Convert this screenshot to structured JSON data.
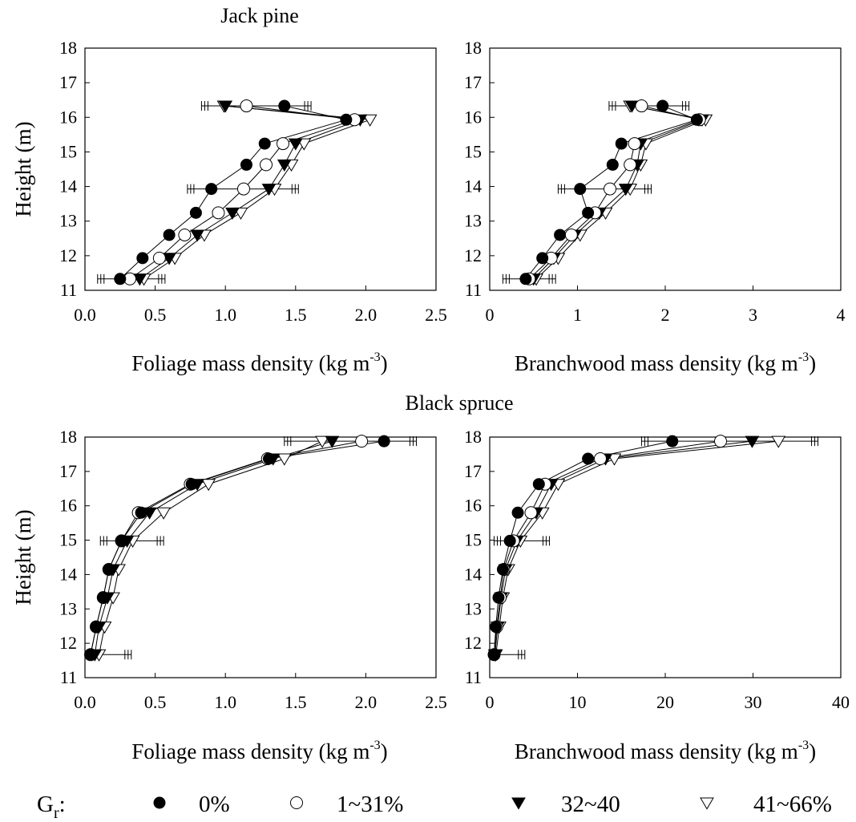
{
  "chart_data": [
    {
      "type": "line",
      "group_title": "Jack pine",
      "xlabel": "Foliage mass density (kg m",
      "xlabel_sup": "-3",
      "xlabel_end": ")",
      "ylabel": "Height (m)",
      "xlim": [
        0,
        2.5
      ],
      "ylim": [
        11,
        18
      ],
      "xticks": [
        "0.0",
        "0.5",
        "1.0",
        "1.5",
        "2.0",
        "2.5"
      ],
      "yticks": [
        "11",
        "12",
        "13",
        "14",
        "15",
        "16",
        "17",
        "18"
      ],
      "series": [
        {
          "name": "0%",
          "x": [
            1.42,
            1.86,
            1.28,
            1.15,
            0.9,
            0.79,
            0.6,
            0.41,
            0.25
          ],
          "y": [
            16.33,
            15.93,
            15.24,
            14.63,
            13.93,
            13.24,
            12.6,
            11.93,
            11.33
          ]
        },
        {
          "name": "1~31%",
          "x": [
            1.15,
            1.92,
            1.41,
            1.29,
            1.13,
            0.95,
            0.71,
            0.53,
            0.32
          ],
          "y": [
            16.33,
            15.93,
            15.24,
            14.63,
            13.93,
            13.24,
            12.6,
            11.93,
            11.33
          ]
        },
        {
          "name": "32~40",
          "x": [
            1.0,
            1.96,
            1.5,
            1.42,
            1.31,
            1.05,
            0.8,
            0.6,
            0.39
          ],
          "y": [
            16.33,
            15.93,
            15.24,
            14.63,
            13.93,
            13.24,
            12.6,
            11.93,
            11.33
          ]
        },
        {
          "name": "41~66%",
          "x": [
            0.99,
            2.03,
            1.56,
            1.47,
            1.35,
            1.11,
            0.85,
            0.64,
            0.42
          ],
          "y": [
            16.33,
            15.93,
            15.24,
            14.63,
            13.93,
            13.24,
            12.6,
            11.93,
            11.33
          ]
        }
      ],
      "error_bars": [
        {
          "y": 16.33,
          "x": [
            0.83,
            1.61
          ]
        },
        {
          "y": 13.93,
          "x": [
            0.73,
            1.52
          ]
        },
        {
          "y": 11.33,
          "x": [
            0.09,
            0.57
          ]
        }
      ]
    },
    {
      "type": "line",
      "group_title": "",
      "xlabel": "Branchwood mass density (kg m",
      "xlabel_sup": "-3",
      "xlabel_end": ")",
      "ylabel": "",
      "xlim": [
        0,
        4
      ],
      "ylim": [
        11,
        18
      ],
      "xticks": [
        "0",
        "1",
        "2",
        "3",
        "4"
      ],
      "yticks": [
        "11",
        "12",
        "13",
        "14",
        "15",
        "16",
        "17",
        "18"
      ],
      "series": [
        {
          "name": "0%",
          "x": [
            1.97,
            2.36,
            1.5,
            1.4,
            1.03,
            1.12,
            0.8,
            0.6,
            0.41
          ],
          "y": [
            16.33,
            15.93,
            15.24,
            14.63,
            13.93,
            13.24,
            12.6,
            11.93,
            11.33
          ]
        },
        {
          "name": "1~31%",
          "x": [
            1.73,
            2.39,
            1.65,
            1.6,
            1.37,
            1.2,
            0.93,
            0.7,
            0.45
          ],
          "y": [
            16.33,
            15.93,
            15.24,
            14.63,
            13.93,
            13.24,
            12.6,
            11.93,
            11.33
          ]
        },
        {
          "name": "32~40",
          "x": [
            1.62,
            2.42,
            1.72,
            1.68,
            1.55,
            1.25,
            0.97,
            0.73,
            0.5
          ],
          "y": [
            16.33,
            15.93,
            15.24,
            14.63,
            13.93,
            13.24,
            12.6,
            11.93,
            11.33
          ]
        },
        {
          "name": "41~66%",
          "x": [
            1.6,
            2.46,
            1.78,
            1.72,
            1.6,
            1.32,
            1.03,
            0.78,
            0.53
          ],
          "y": [
            16.33,
            15.93,
            15.24,
            14.63,
            13.93,
            13.24,
            12.6,
            11.93,
            11.33
          ]
        }
      ],
      "error_bars": [
        {
          "y": 16.33,
          "x": [
            1.36,
            2.27
          ]
        },
        {
          "y": 13.93,
          "x": [
            0.78,
            1.84
          ]
        },
        {
          "y": 11.33,
          "x": [
            0.15,
            0.75
          ]
        }
      ]
    },
    {
      "type": "line",
      "group_title": "Black spruce",
      "xlabel": "Foliage mass density (kg m",
      "xlabel_sup": "-3",
      "xlabel_end": ")",
      "ylabel": "Height (m)",
      "xlim": [
        0,
        2.5
      ],
      "ylim": [
        11,
        18
      ],
      "xticks": [
        "0.0",
        "0.5",
        "1.0",
        "1.5",
        "2.0",
        "2.5"
      ],
      "yticks": [
        "11",
        "12",
        "13",
        "14",
        "15",
        "16",
        "17",
        "18"
      ],
      "series": [
        {
          "name": "0%",
          "x": [
            2.13,
            1.31,
            0.76,
            0.4,
            0.26,
            0.17,
            0.13,
            0.08,
            0.04
          ],
          "y": [
            17.88,
            17.37,
            16.63,
            15.8,
            14.98,
            14.15,
            13.33,
            12.48,
            11.67
          ]
        },
        {
          "name": "1~31%",
          "x": [
            1.97,
            1.3,
            0.75,
            0.38,
            0.26,
            0.17,
            0.13,
            0.08,
            0.04
          ],
          "y": [
            17.88,
            17.37,
            16.63,
            15.8,
            14.98,
            14.15,
            13.33,
            12.48,
            11.67
          ]
        },
        {
          "name": "32~40",
          "x": [
            1.76,
            1.34,
            0.8,
            0.46,
            0.3,
            0.2,
            0.16,
            0.1,
            0.07
          ],
          "y": [
            17.88,
            17.37,
            16.63,
            15.8,
            14.98,
            14.15,
            13.33,
            12.48,
            11.67
          ]
        },
        {
          "name": "41~66%",
          "x": [
            1.69,
            1.42,
            0.88,
            0.56,
            0.34,
            0.24,
            0.2,
            0.14,
            0.1
          ],
          "y": [
            17.88,
            17.37,
            16.63,
            15.8,
            14.98,
            14.15,
            13.33,
            12.48,
            11.67
          ]
        }
      ],
      "error_bars": [
        {
          "y": 17.88,
          "x": [
            1.42,
            2.36
          ]
        },
        {
          "y": 14.98,
          "x": [
            0.11,
            0.56
          ]
        },
        {
          "y": 11.67,
          "x": [
            0.03,
            0.33
          ]
        }
      ]
    },
    {
      "type": "line",
      "group_title": "",
      "xlabel": "Branchwood mass density (kg m",
      "xlabel_sup": "-3",
      "xlabel_end": ")",
      "ylabel": "",
      "xlim": [
        0,
        40
      ],
      "ylim": [
        11,
        18
      ],
      "xticks": [
        "0",
        "10",
        "20",
        "30",
        "40"
      ],
      "yticks": [
        "11",
        "12",
        "13",
        "14",
        "15",
        "16",
        "17",
        "18"
      ],
      "series": [
        {
          "name": "0%",
          "x": [
            20.8,
            11.2,
            5.6,
            3.2,
            2.3,
            1.5,
            1.0,
            0.7,
            0.5
          ],
          "y": [
            17.88,
            17.37,
            16.63,
            15.8,
            14.98,
            14.15,
            13.33,
            12.48,
            11.67
          ]
        },
        {
          "name": "1~31%",
          "x": [
            26.3,
            12.6,
            6.3,
            4.7,
            2.7,
            1.6,
            1.2,
            0.8,
            0.5
          ],
          "y": [
            17.88,
            17.37,
            16.63,
            15.8,
            14.98,
            14.15,
            13.33,
            12.48,
            11.67
          ]
        },
        {
          "name": "32~40",
          "x": [
            29.9,
            13.2,
            7.0,
            5.3,
            3.1,
            1.8,
            1.3,
            0.9,
            0.6
          ],
          "y": [
            17.88,
            17.37,
            16.63,
            15.8,
            14.98,
            14.15,
            13.33,
            12.48,
            11.67
          ]
        },
        {
          "name": "41~66%",
          "x": [
            32.9,
            14.2,
            7.8,
            6.0,
            3.5,
            2.1,
            1.5,
            1.1,
            0.7
          ],
          "y": [
            17.88,
            17.37,
            16.63,
            15.8,
            14.98,
            14.15,
            13.33,
            12.48,
            11.67
          ]
        }
      ],
      "error_bars": [
        {
          "y": 17.88,
          "x": [
            17.3,
            37.4
          ]
        },
        {
          "y": 14.98,
          "x": [
            0.5,
            6.8
          ]
        },
        {
          "y": 11.67,
          "x": [
            0.2,
            4.0
          ]
        }
      ]
    }
  ],
  "legend": {
    "label_main": "G",
    "label_sub": "r",
    "label_colon": ":",
    "items": [
      {
        "marker": "filled-circle",
        "label": "0%"
      },
      {
        "marker": "open-circle",
        "label": "1~31%"
      },
      {
        "marker": "filled-triangle-down",
        "label": "32~40"
      },
      {
        "marker": "open-triangle-down",
        "label": "41~66%"
      }
    ]
  }
}
